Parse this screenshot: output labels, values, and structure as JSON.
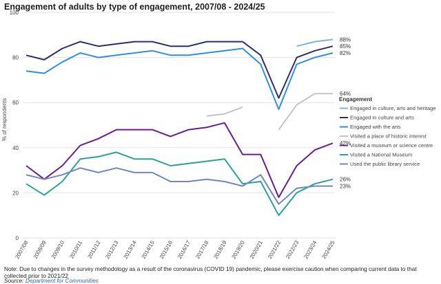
{
  "title": "Engagement of adults by type of engagement, 2007/08 - 2024/25",
  "note": "Note: Due to changes in the survey methodology as a result of the coronavirus (COVID 19) pandemic, please exercise caution when comparing current data to that collected prior to 2021/22",
  "source": {
    "label": "Source:",
    "link_text": "Department for Communities"
  },
  "chart_data": {
    "type": "line",
    "ylabel": "% of respondents",
    "xlabel": "",
    "ylim": [
      0,
      100
    ],
    "yticks": [
      0,
      20,
      40,
      60,
      80,
      100
    ],
    "grid": true,
    "legend_title": "Engagement",
    "legend_position": "right",
    "categories": [
      "2007/08",
      "2008/09",
      "2009/10",
      "2010/11",
      "2011/12",
      "2012/13",
      "2013/14",
      "2014/15",
      "2015/16",
      "2016/17",
      "2017/18",
      "2018/19",
      "2019/20",
      "2020/21",
      "2021/22",
      "2022/23",
      "2023/24",
      "2024/25"
    ],
    "series": [
      {
        "name": "Engaged in culture, arts and heritage",
        "color": "#7db3e0",
        "end_label": "88%",
        "values": [
          null,
          null,
          null,
          null,
          null,
          null,
          null,
          null,
          null,
          null,
          null,
          null,
          null,
          null,
          null,
          85,
          87,
          88
        ]
      },
      {
        "name": "Engaged in culture and arts",
        "color": "#2b2d6e",
        "end_label": "85%",
        "values": [
          81,
          79,
          84,
          87,
          85,
          86,
          87,
          87,
          85,
          85,
          87,
          87,
          87,
          81,
          62,
          80,
          83,
          85
        ]
      },
      {
        "name": "Engaged with the arts",
        "color": "#2e8fe0",
        "end_label": "82%",
        "values": [
          74,
          73,
          78,
          82,
          80,
          81,
          82,
          83,
          81,
          81,
          82,
          83,
          84,
          77,
          57,
          77,
          80,
          82
        ]
      },
      {
        "name": "Visited a place of historic interest",
        "color": "#c4c4c4",
        "end_label": "64%",
        "values": [
          null,
          null,
          null,
          null,
          null,
          null,
          null,
          null,
          null,
          null,
          54,
          55,
          58,
          null,
          48,
          59,
          64,
          64
        ]
      },
      {
        "name": "Visited a museum or science centre",
        "color": "#6a1b8f",
        "end_label": "42%",
        "values": [
          32,
          26,
          32,
          41,
          44,
          48,
          48,
          48,
          45,
          48,
          49,
          51,
          37,
          37,
          18,
          32,
          39,
          42
        ]
      },
      {
        "name": "Visited a National Museum",
        "color": "#2aa198",
        "end_label": "26%",
        "values": [
          24,
          19,
          25,
          35,
          36,
          38,
          35,
          35,
          32,
          33,
          34,
          35,
          24,
          25,
          10,
          20,
          24,
          26
        ]
      },
      {
        "name": "Used the public library service",
        "color": "#6f87c0",
        "end_label": "23%",
        "values": [
          28,
          26,
          28,
          31,
          29,
          31,
          29,
          29,
          25,
          25,
          26,
          25,
          23,
          28,
          15,
          22,
          23,
          23
        ]
      }
    ]
  }
}
